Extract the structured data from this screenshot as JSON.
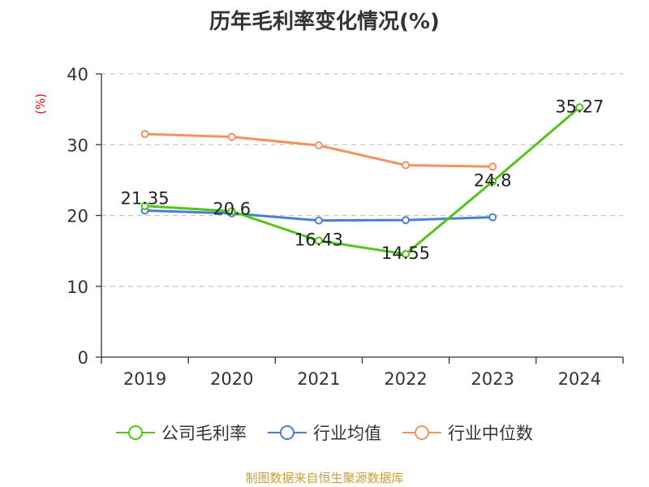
{
  "title": "历年毛利率变化情况(%)",
  "source": "制图数据来自恒生聚源数据库",
  "chart_data": {
    "type": "line",
    "title": "历年毛利率变化情况(%)",
    "ylabel": "(%)",
    "xlabel": "",
    "categories": [
      "2019",
      "2020",
      "2021",
      "2022",
      "2023",
      "2024"
    ],
    "ylim": [
      0,
      40
    ],
    "yticks": [
      0,
      10,
      20,
      30,
      40
    ],
    "grid": true,
    "legend_position": "bottom",
    "series": [
      {
        "name": "公司毛利率",
        "color": "#52c41a",
        "values": [
          21.35,
          20.6,
          16.43,
          14.55,
          24.8,
          35.27
        ],
        "show_labels": true
      },
      {
        "name": "行业均值",
        "color": "#4a7fd6",
        "values": [
          20.7,
          20.3,
          19.3,
          19.35,
          19.75,
          null
        ],
        "show_labels": false
      },
      {
        "name": "行业中位数",
        "color": "#f5925e",
        "values": [
          31.5,
          31.1,
          29.9,
          27.1,
          26.9,
          null
        ],
        "show_labels": false
      }
    ]
  }
}
